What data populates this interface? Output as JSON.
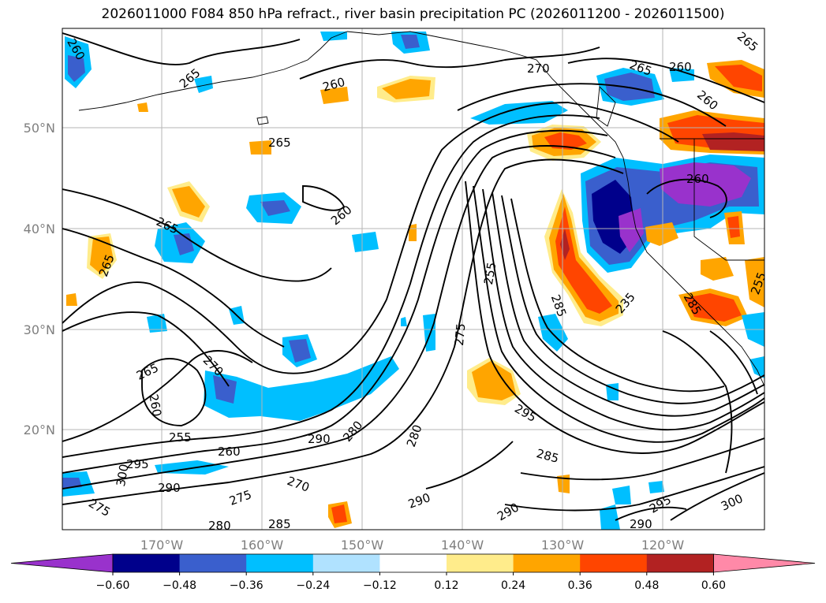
{
  "title": "2026011000 F084 850 hPa refract., river basin precipitation PC (2026011200 - 2026011500)",
  "map": {
    "lat_ticks": [
      {
        "lat": 50,
        "label": "50°N"
      },
      {
        "lat": 40,
        "label": "40°N"
      },
      {
        "lat": 30,
        "label": "30°N"
      },
      {
        "lat": 20,
        "label": "20°N"
      }
    ],
    "lon_ticks": [
      {
        "lon": -170,
        "label": "170°W"
      },
      {
        "lon": -160,
        "label": "160°W"
      },
      {
        "lon": -150,
        "label": "150°W"
      },
      {
        "lon": -140,
        "label": "140°W"
      },
      {
        "lon": -130,
        "label": "130°W"
      },
      {
        "lon": -120,
        "label": "120°W"
      }
    ],
    "extent": {
      "lon_min": -179.5,
      "lon_max": -109.5,
      "lat_min": 10,
      "lat_max": 60
    },
    "contour_labels": [
      "260",
      "265",
      "265",
      "260",
      "270",
      "265",
      "260",
      "260",
      "260",
      "265",
      "260",
      "265",
      "265",
      "255",
      "265",
      "270",
      "260",
      "255",
      "260",
      "280",
      "295",
      "290",
      "300",
      "275",
      "275",
      "270",
      "280",
      "290",
      "280",
      "290",
      "285",
      "290",
      "295",
      "285",
      "290",
      "295",
      "300",
      "275",
      "235",
      "285",
      "285",
      "255"
    ]
  },
  "colorbar": {
    "ticks": [
      "−0.60",
      "−0.48",
      "−0.36",
      "−0.24",
      "−0.12",
      "0.12",
      "0.24",
      "0.36",
      "0.48",
      "0.60"
    ],
    "colors": [
      "#9932cc",
      "#00008b",
      "#3a5fcd",
      "#00bfff",
      "#b0e2ff",
      "#ffffff",
      "#ffec8b",
      "#ffa500",
      "#ff4500",
      "#b22222",
      "#ff89a8"
    ]
  }
}
